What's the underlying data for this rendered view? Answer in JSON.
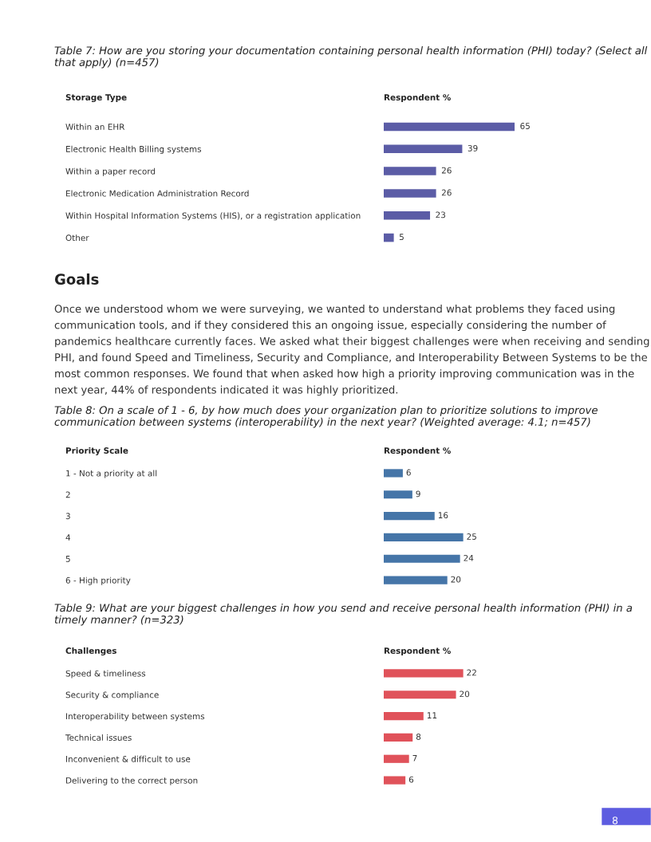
{
  "chart_data": [
    {
      "type": "bar",
      "orientation": "horizontal",
      "title": "Table 7: How are you storing your documentation containing personal health information (PHI) today? (Select all that apply) (n=457)",
      "ylabel": "Storage Type",
      "xlabel": "Respondent %",
      "categories": [
        "Within an EHR",
        "Electronic Health Billing systems",
        "Within a paper record",
        "Electronic Medication Administration Record",
        "Within Hospital Information Systems (HIS), or a registration application",
        "Other"
      ],
      "values": [
        65,
        39,
        26,
        26,
        23,
        5
      ],
      "color": "#5b5ca6",
      "data_labels": true,
      "tick_labels": "y",
      "grid": false,
      "legend": false
    },
    {
      "type": "bar",
      "orientation": "horizontal",
      "title": "Table 8: On a scale of 1 - 6, by how much does your organization plan to prioritize solutions to improve communication between systems (interoperability) in the next year? (Weighted average: 4.1; n=457)",
      "ylabel": "Priority Scale",
      "xlabel": "Respondent %",
      "categories": [
        "1 - Not a priority at all",
        "2",
        "3",
        "4",
        "5",
        "6 - High priority"
      ],
      "values": [
        6,
        9,
        16,
        25,
        24,
        20
      ],
      "color": "#4575a8",
      "data_labels": true,
      "tick_labels": "y",
      "grid": false,
      "legend": false,
      "annotations": [
        "Goals",
        "Once we understood whom we were surveying, we wanted to understand what problems they faced using communication tools, and if they considered this an ongoing issue, especially considering the number of pandemics healthcare currently faces. We asked what their biggest challenges were when receiving and sending PHI, and found Speed and Timeliness, Security and Compliance, and Interoperability Between Systems to be the most common responses. We found that when asked how high a priority improving communication was in the next year, 44% of respondents indicated it was highly prioritized."
      ]
    },
    {
      "type": "bar",
      "orientation": "horizontal",
      "title": "Table 9: What are your biggest challenges in how you send and receive personal health information (PHI) in a timely manner? (n=323)",
      "ylabel": "Challenges",
      "xlabel": "Respondent %",
      "categories": [
        "Speed & timeliness",
        "Security & compliance",
        "Interoperability between systems",
        "Technical issues",
        "Inconvenient & difficult to use",
        "Delivering to the correct person"
      ],
      "values": [
        22,
        20,
        11,
        8,
        7,
        6
      ],
      "color": "#e0525a",
      "data_labels": true,
      "tick_labels": "y",
      "grid": false,
      "legend": false,
      "annotations": [
        "8"
      ]
    }
  ]
}
